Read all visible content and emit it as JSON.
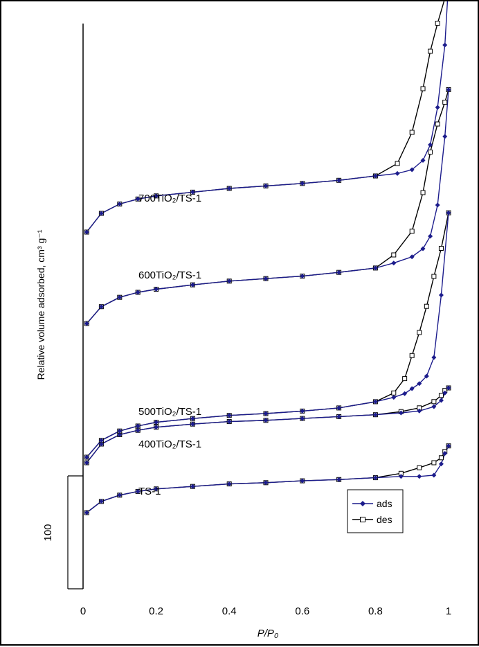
{
  "chart_data": {
    "type": "line",
    "xlabel": "P/P₀",
    "ylabel": "Relative volume adsorbed, cm³ g⁻¹",
    "xlim": [
      0,
      1
    ],
    "xticks": [
      "0",
      "0.2",
      "0.4",
      "0.6",
      "0.8",
      "1"
    ],
    "scale_bar_label": "100",
    "legend": {
      "position": "bottom-right",
      "entries": [
        "ads",
        "des"
      ]
    },
    "colors": {
      "ads": "#1c1c8c",
      "des": "#000000"
    },
    "series": [
      {
        "name": "TS-1",
        "offset_level": 0,
        "x": [
          0.01,
          0.05,
          0.1,
          0.15,
          0.2,
          0.3,
          0.4,
          0.5,
          0.6,
          0.7,
          0.8,
          0.87,
          0.92,
          0.96,
          0.98,
          0.99,
          1.0
        ],
        "ads": [
          0,
          18,
          28,
          34,
          38,
          42,
          46,
          48,
          51,
          53,
          56,
          58,
          58,
          60,
          78,
          95,
          107
        ],
        "des": [
          0,
          18,
          28,
          34,
          38,
          42,
          46,
          48,
          51,
          53,
          56,
          63,
          72,
          80,
          88,
          98,
          107
        ]
      },
      {
        "name": "400TiO₂/TS-1",
        "offset_level": 1,
        "x": [
          0.01,
          0.05,
          0.1,
          0.15,
          0.2,
          0.3,
          0.4,
          0.5,
          0.6,
          0.7,
          0.8,
          0.87,
          0.92,
          0.96,
          0.98,
          0.99,
          1.0
        ],
        "ads": [
          0,
          30,
          45,
          52,
          57,
          62,
          66,
          68,
          71,
          74,
          77,
          80,
          83,
          90,
          100,
          112,
          120
        ],
        "des": [
          0,
          30,
          45,
          52,
          57,
          62,
          66,
          68,
          71,
          74,
          77,
          82,
          88,
          98,
          108,
          116,
          120
        ]
      },
      {
        "name": "500TiO₂/TS-1",
        "offset_level": 2,
        "x": [
          0.01,
          0.05,
          0.1,
          0.15,
          0.2,
          0.3,
          0.4,
          0.5,
          0.6,
          0.7,
          0.8,
          0.85,
          0.88,
          0.9,
          0.92,
          0.94,
          0.96,
          0.98,
          1.0
        ],
        "ads": [
          0,
          27,
          42,
          50,
          56,
          62,
          67,
          70,
          74,
          79,
          89,
          96,
          102,
          110,
          118,
          130,
          160,
          260,
          392
        ],
        "des": [
          0,
          27,
          42,
          50,
          56,
          62,
          67,
          70,
          74,
          79,
          89,
          103,
          126,
          163,
          200,
          242,
          290,
          335,
          392
        ]
      },
      {
        "name": "600TiO₂/TS-1",
        "offset_level": 3,
        "x": [
          0.01,
          0.05,
          0.1,
          0.15,
          0.2,
          0.3,
          0.4,
          0.5,
          0.6,
          0.7,
          0.8,
          0.85,
          0.9,
          0.93,
          0.95,
          0.97,
          0.99,
          1.0
        ],
        "ads": [
          0,
          27,
          42,
          50,
          55,
          62,
          68,
          72,
          76,
          82,
          89,
          97,
          107,
          120,
          140,
          190,
          300,
          375
        ],
        "des": [
          0,
          27,
          42,
          50,
          55,
          62,
          68,
          72,
          76,
          82,
          89,
          110,
          148,
          210,
          275,
          320,
          355,
          375
        ]
      },
      {
        "name": "700TiO₂/TS-1",
        "offset_level": 4,
        "x": [
          0.01,
          0.05,
          0.1,
          0.15,
          0.2,
          0.3,
          0.4,
          0.5,
          0.6,
          0.7,
          0.8,
          0.86,
          0.9,
          0.93,
          0.95,
          0.97,
          0.99,
          1.0
        ],
        "ads": [
          0,
          30,
          45,
          53,
          58,
          64,
          70,
          74,
          78,
          83,
          90,
          94,
          100,
          115,
          140,
          200,
          300,
          400
        ],
        "des": [
          0,
          30,
          45,
          53,
          58,
          64,
          70,
          74,
          78,
          83,
          90,
          110,
          160,
          230,
          290,
          335,
          375,
          400
        ]
      }
    ]
  }
}
